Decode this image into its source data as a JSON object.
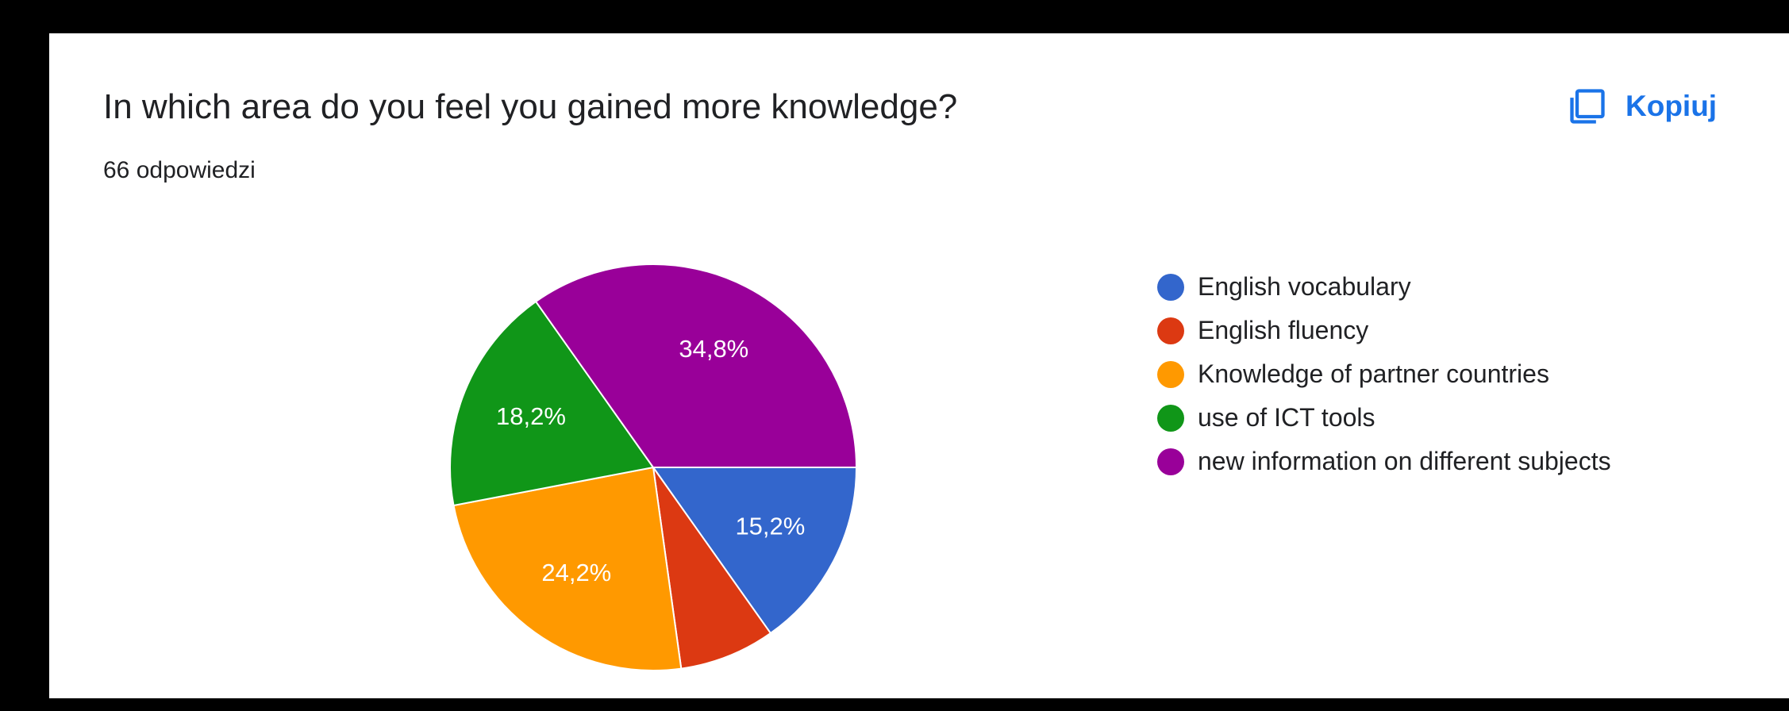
{
  "card": {
    "title": "In which area do you feel you gained more knowledge?",
    "response_count": "66 odpowiedzi",
    "copy_button": {
      "label": "Kopiuj",
      "icon": "copy-icon",
      "color": "#1a73e8"
    }
  },
  "chart_data": {
    "type": "pie",
    "title": "In which area do you feel you gained more knowledge?",
    "legend_position": "right",
    "total_responses": 66,
    "slices": [
      {
        "label": "English vocabulary",
        "value": 15.2,
        "display": "15,2%",
        "color": "#3366cc"
      },
      {
        "label": "English fluency",
        "value": 7.6,
        "display": "",
        "color": "#dc3912"
      },
      {
        "label": "Knowledge of partner countries",
        "value": 24.2,
        "display": "24,2%",
        "color": "#ff9900"
      },
      {
        "label": "use of ICT tools",
        "value": 18.2,
        "display": "18,2%",
        "color": "#109618"
      },
      {
        "label": "new information on different subjects",
        "value": 34.8,
        "display": "34,8%",
        "color": "#990099"
      }
    ]
  }
}
